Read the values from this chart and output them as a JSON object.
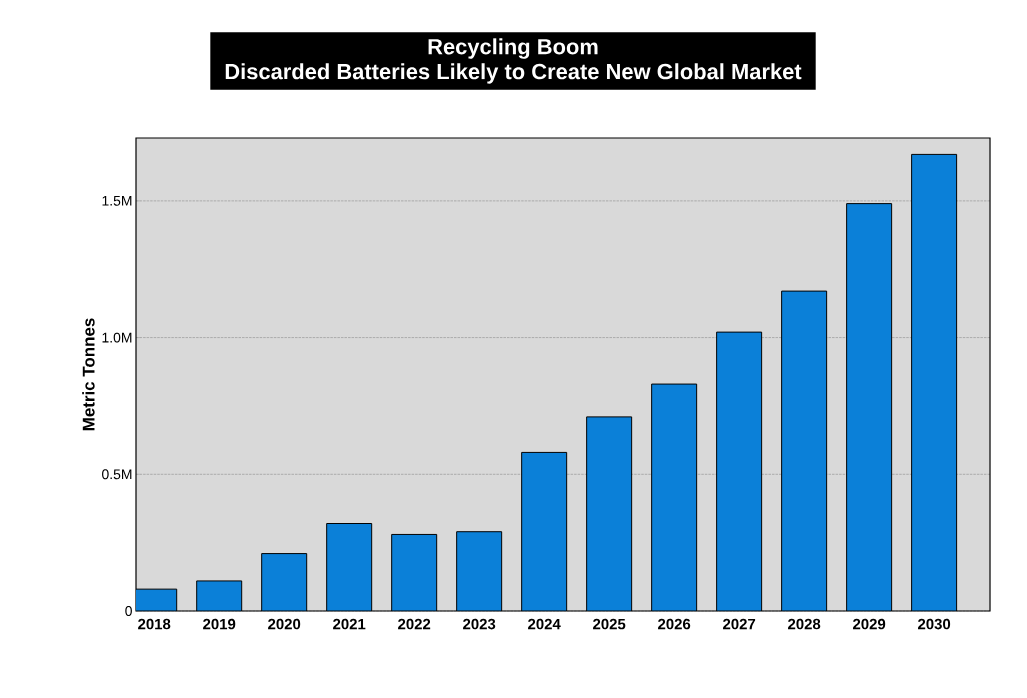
{
  "chart_data": {
    "type": "bar",
    "title": "Recycling Boom",
    "subtitle": "Discarded Batteries Likely to Create New Global Market",
    "ylabel": "Metric Tonnes",
    "categories": [
      "2018",
      "2019",
      "2020",
      "2021",
      "2022",
      "2023",
      "2024",
      "2025",
      "2026",
      "2027",
      "2028",
      "2029",
      "2030"
    ],
    "values": [
      80000,
      110000,
      210000,
      320000,
      280000,
      290000,
      580000,
      710000,
      830000,
      1020000,
      1170000,
      1490000,
      1670000
    ],
    "color": "#0b80d8",
    "ylim": [
      0,
      1730000
    ],
    "yticks": [
      {
        "value": 0,
        "label": "0"
      },
      {
        "value": 500000,
        "label": "0.5M"
      },
      {
        "value": 1000000,
        "label": "1.0M"
      },
      {
        "value": 1500000,
        "label": "1.5M"
      }
    ],
    "grid": "y"
  }
}
